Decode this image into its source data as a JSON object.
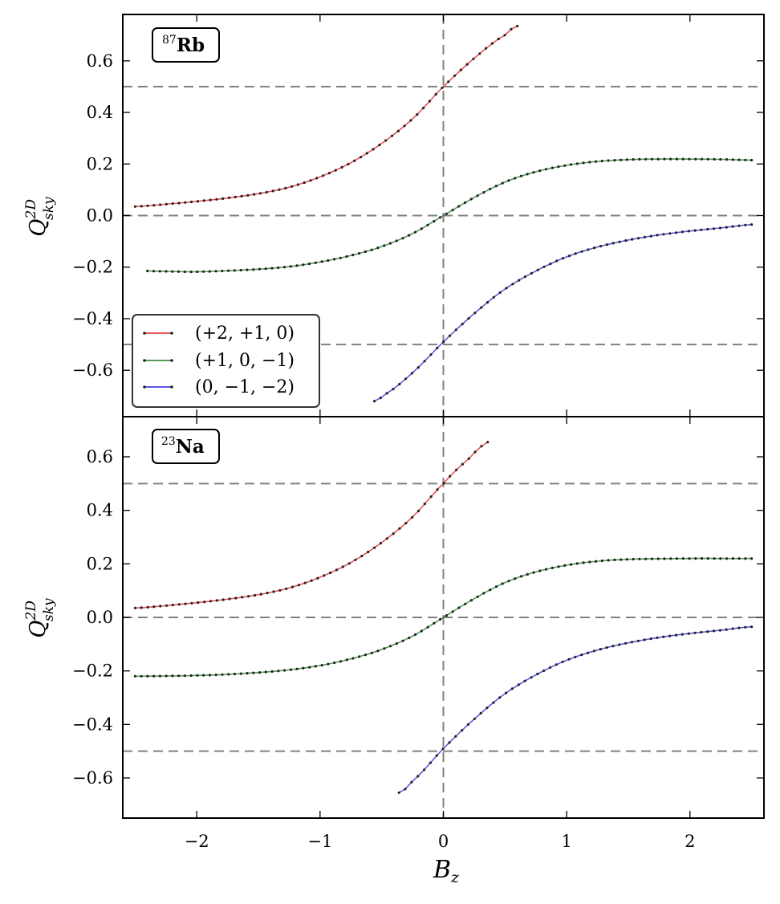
{
  "chart_data": [
    {
      "type": "line",
      "panel_label": {
        "sup": "87",
        "text": "Rb"
      },
      "ylabel": {
        "base": "Q",
        "sup": "2D",
        "sub": "sky"
      },
      "xlim": [
        -2.6,
        2.6
      ],
      "ylim": [
        -0.78,
        0.78
      ],
      "xticks": [
        -2,
        -1,
        0,
        1,
        2
      ],
      "yticks": [
        -0.6,
        -0.4,
        -0.2,
        0.0,
        0.2,
        0.4,
        0.6
      ],
      "reference_lines": {
        "horizontal": [
          0.5,
          0.0,
          -0.5
        ],
        "vertical": [
          0
        ]
      },
      "legend_position": "lower-left",
      "series": [
        {
          "name": "(+2, +1, 0)",
          "color": "#e41a1c",
          "x": [
            -2.5,
            -2.25,
            -2.0,
            -1.75,
            -1.5,
            -1.25,
            -1.0,
            -0.75,
            -0.5,
            -0.25,
            0.0,
            0.25,
            0.5,
            0.6
          ],
          "y": [
            0.035,
            0.044,
            0.055,
            0.068,
            0.085,
            0.11,
            0.15,
            0.205,
            0.28,
            0.375,
            0.5,
            0.61,
            0.7,
            0.735
          ]
        },
        {
          "name": "(+1, 0, −1)",
          "color": "#1a7a1a",
          "x": [
            -2.4,
            -2.2,
            -2.0,
            -1.75,
            -1.5,
            -1.25,
            -1.0,
            -0.75,
            -0.5,
            -0.25,
            0.0,
            0.25,
            0.5,
            0.75,
            1.0,
            1.25,
            1.5,
            1.75,
            2.0,
            2.25,
            2.5
          ],
          "y": [
            -0.215,
            -0.217,
            -0.218,
            -0.214,
            -0.208,
            -0.198,
            -0.18,
            -0.155,
            -0.12,
            -0.07,
            0.0,
            0.07,
            0.13,
            0.17,
            0.195,
            0.21,
            0.217,
            0.219,
            0.219,
            0.218,
            0.215
          ]
        },
        {
          "name": "(0, −1, −2)",
          "color": "#2424d8",
          "x": [
            -0.56,
            -0.5,
            -0.25,
            0.0,
            0.25,
            0.5,
            0.75,
            1.0,
            1.25,
            1.5,
            1.75,
            2.0,
            2.25,
            2.5
          ],
          "y": [
            -0.72,
            -0.7,
            -0.61,
            -0.49,
            -0.38,
            -0.285,
            -0.215,
            -0.16,
            -0.122,
            -0.095,
            -0.075,
            -0.06,
            -0.048,
            -0.035
          ]
        }
      ]
    },
    {
      "type": "line",
      "panel_label": {
        "sup": "23",
        "text": "Na"
      },
      "xlabel": "Bz",
      "ylabel": {
        "base": "Q",
        "sup": "2D",
        "sub": "sky"
      },
      "xlim": [
        -2.6,
        2.6
      ],
      "ylim": [
        -0.75,
        0.75
      ],
      "xticks": [
        -2,
        -1,
        0,
        1,
        2
      ],
      "yticks": [
        -0.6,
        -0.4,
        -0.2,
        0.0,
        0.2,
        0.4,
        0.6
      ],
      "reference_lines": {
        "horizontal": [
          0.5,
          0.0,
          -0.5
        ],
        "vertical": [
          0
        ]
      },
      "series": [
        {
          "name": "(+2, +1, 0)",
          "color": "#e41a1c",
          "x": [
            -2.5,
            -2.25,
            -2.0,
            -1.75,
            -1.5,
            -1.25,
            -1.0,
            -0.75,
            -0.5,
            -0.25,
            0.0,
            0.2,
            0.36
          ],
          "y": [
            0.035,
            0.044,
            0.055,
            0.068,
            0.085,
            0.11,
            0.15,
            0.205,
            0.28,
            0.375,
            0.5,
            0.59,
            0.655
          ]
        },
        {
          "name": "(+1, 0, −1)",
          "color": "#1a7a1a",
          "x": [
            -2.5,
            -2.25,
            -2.0,
            -1.75,
            -1.5,
            -1.25,
            -1.0,
            -0.75,
            -0.5,
            -0.25,
            0.0,
            0.25,
            0.5,
            0.75,
            1.0,
            1.25,
            1.5,
            1.75,
            2.0,
            2.25,
            2.5
          ],
          "y": [
            -0.22,
            -0.219,
            -0.217,
            -0.213,
            -0.206,
            -0.196,
            -0.18,
            -0.155,
            -0.12,
            -0.07,
            0.0,
            0.07,
            0.13,
            0.17,
            0.195,
            0.21,
            0.217,
            0.219,
            0.22,
            0.22,
            0.22
          ]
        },
        {
          "name": "(0, −1, −2)",
          "color": "#2424d8",
          "x": [
            -0.36,
            -0.25,
            0.0,
            0.25,
            0.5,
            0.75,
            1.0,
            1.25,
            1.5,
            1.75,
            2.0,
            2.25,
            2.5
          ],
          "y": [
            -0.655,
            -0.61,
            -0.49,
            -0.38,
            -0.285,
            -0.215,
            -0.16,
            -0.122,
            -0.095,
            -0.075,
            -0.06,
            -0.048,
            -0.035
          ]
        }
      ]
    }
  ],
  "tick_text": {
    "x": [
      "−2",
      "−1",
      "0",
      "1",
      "2"
    ],
    "y": [
      "−0.6",
      "−0.4",
      "−0.2",
      "0.0",
      "0.2",
      "0.4",
      "0.6"
    ]
  },
  "legend": [
    {
      "label": "(+2, +1, 0)",
      "color": "#e41a1c"
    },
    {
      "label": "(+1, 0, −1)",
      "color": "#1a7a1a"
    },
    {
      "label": "(0, −1, −2)",
      "color": "#2424d8"
    }
  ],
  "x_axis_title": {
    "base": "B",
    "sub": "z"
  },
  "style": {
    "reference_line_color": "#808080",
    "marker_color": "#222222"
  }
}
